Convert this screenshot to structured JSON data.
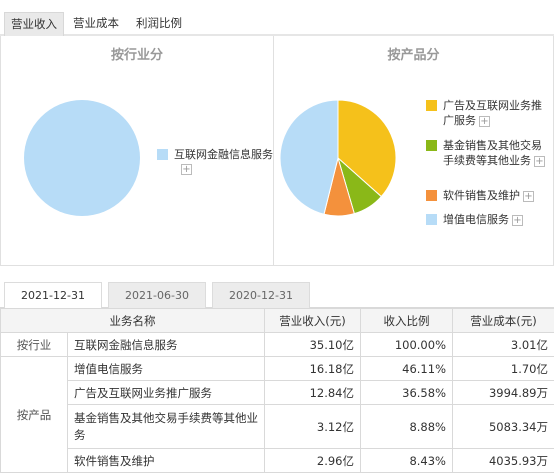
{
  "top_tabs": [
    {
      "label": "营业收入",
      "active": true
    },
    {
      "label": "营业成本",
      "active": false
    },
    {
      "label": "利润比例",
      "active": false
    }
  ],
  "left_panel": {
    "title": "按行业分",
    "legend": [
      {
        "label": "互联网金融信息服务",
        "color": "#b7dcf7",
        "share": 100.0
      }
    ]
  },
  "right_panel": {
    "title": "按产品分",
    "legend": [
      {
        "label": "广告及互联网业务推广服务",
        "color": "#f5c11b",
        "share": 36.58
      },
      {
        "label": "基金销售及其他交易手续费等其他业务",
        "color": "#8ab818",
        "share": 8.88
      },
      {
        "label": "软件销售及维护",
        "color": "#f4913c",
        "share": 8.43
      },
      {
        "label": "增值电信服务",
        "color": "#b7dcf7",
        "share": 46.11
      }
    ]
  },
  "plus_symbol": "+",
  "date_tabs": [
    {
      "label": "2021-12-31",
      "active": true
    },
    {
      "label": "2021-06-30",
      "active": false
    },
    {
      "label": "2020-12-31",
      "active": false
    }
  ],
  "table": {
    "headers": [
      "业务名称",
      "营业收入(元)",
      "收入比例",
      "营业成本(元)"
    ],
    "groups": [
      {
        "category": "按行业",
        "rows": [
          {
            "name": "互联网金融信息服务",
            "revenue": "35.10亿",
            "ratio": "100.00%",
            "cost": "3.01亿"
          }
        ]
      },
      {
        "category": "按产品",
        "rows": [
          {
            "name": "增值电信服务",
            "revenue": "16.18亿",
            "ratio": "46.11%",
            "cost": "1.70亿"
          },
          {
            "name": "广告及互联网业务推广服务",
            "revenue": "12.84亿",
            "ratio": "36.58%",
            "cost": "3994.89万"
          },
          {
            "name": "基金销售及其他交易手续费等其他业务",
            "revenue": "3.12亿",
            "ratio": "8.88%",
            "cost": "5083.34万"
          },
          {
            "name": "软件销售及维护",
            "revenue": "2.96亿",
            "ratio": "8.43%",
            "cost": "4035.93万"
          }
        ]
      }
    ]
  }
}
